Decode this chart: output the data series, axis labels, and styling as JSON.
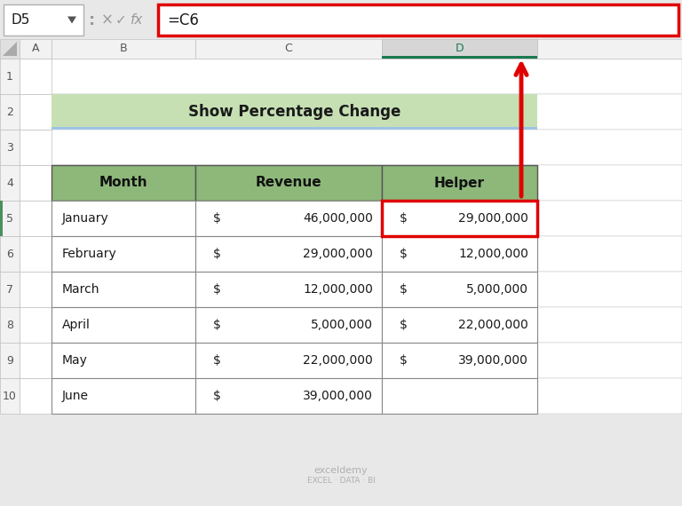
{
  "title": "Show Percentage Change",
  "formula_bar_text": "=C6",
  "cell_ref": "D5",
  "months": [
    "January",
    "February",
    "March",
    "April",
    "May",
    "June"
  ],
  "revenue_vals": [
    "46,000,000",
    "29,000,000",
    "12,000,000",
    "5,000,000",
    "22,000,000",
    "39,000,000"
  ],
  "helper_vals": [
    "29,000,000",
    "12,000,000",
    "5,000,000",
    "22,000,000",
    "39,000,000",
    ""
  ],
  "bg_color": "#e8e8e8",
  "header_green": "#8db87a",
  "title_green_bg": "#c6e0b4",
  "title_green_border": "#9dc3e6",
  "white": "#ffffff",
  "selected_cell_border": "#e00000",
  "formula_bar_border": "#e00000",
  "col_d_header_bg": "#d0d0d0",
  "col_d_header_underline": "#1f7a4f",
  "arrow_color": "#e00000",
  "text_dark": "#1a1a1a",
  "watermark_color": "#b0b0b0",
  "cell_border": "#b0b0b0",
  "row_num_bg": "#f2f2f2",
  "col_hdr_bg": "#f2f2f2"
}
